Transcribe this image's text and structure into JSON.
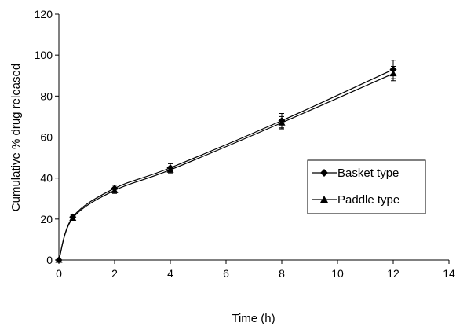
{
  "chart_data": {
    "type": "line",
    "title": "",
    "xlabel": "Time (h)",
    "ylabel": "Cumulative % drug released",
    "xlim": [
      0,
      14
    ],
    "ylim": [
      0,
      120
    ],
    "xticks": [
      "0",
      "2",
      "4",
      "6",
      "8",
      "10",
      "12",
      "14"
    ],
    "yticks": [
      "0",
      "20",
      "40",
      "60",
      "80",
      "100",
      "120"
    ],
    "grid": false,
    "legend_position": "right",
    "line_color": "#000000",
    "series": [
      {
        "name": "Basket type",
        "marker": "diamond",
        "x": [
          0,
          0.5,
          2,
          4,
          8,
          12
        ],
        "y": [
          0,
          21,
          35,
          45,
          68,
          93
        ],
        "error": [
          0,
          1,
          1.5,
          2,
          3.5,
          4.5
        ]
      },
      {
        "name": "Paddle type",
        "marker": "triangle",
        "x": [
          0,
          0.5,
          2,
          4,
          8,
          12
        ],
        "y": [
          0,
          20.5,
          34,
          44,
          67,
          91
        ],
        "error": [
          0,
          1,
          1.5,
          1.5,
          3,
          3.5
        ]
      }
    ]
  }
}
